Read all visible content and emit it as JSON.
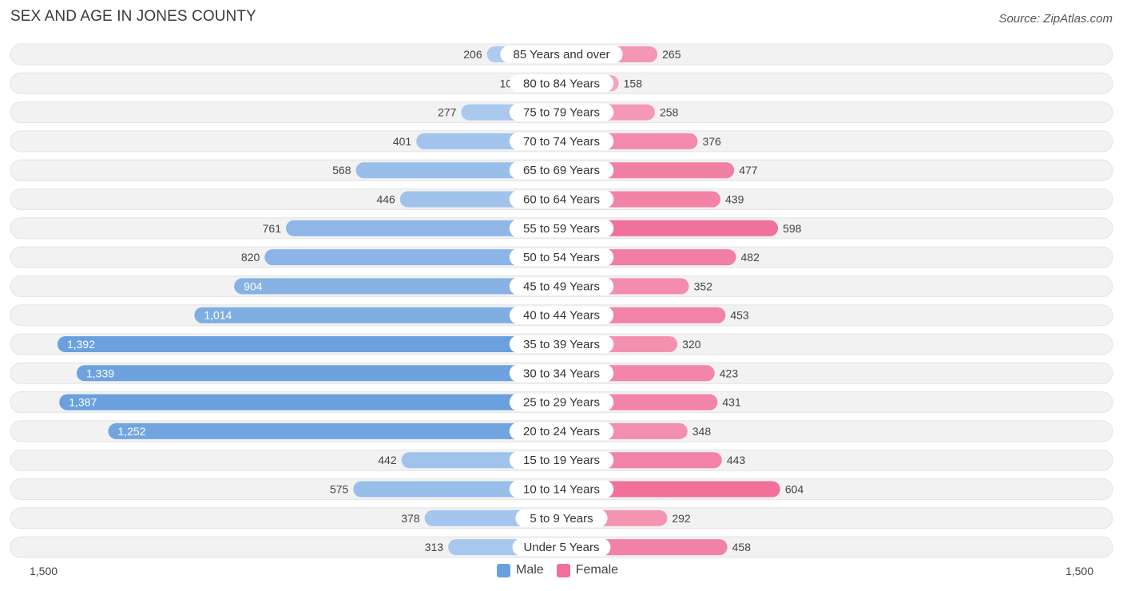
{
  "title": "SEX AND AGE IN JONES COUNTY",
  "source": "Source: ZipAtlas.com",
  "colors": {
    "male": "#6aa0dd",
    "female": "#f07099",
    "row_background": "#f2f2f2"
  },
  "chart_data": {
    "type": "bar",
    "orientation": "horizontal-diverging",
    "categories": [
      "85 Years and over",
      "80 to 84 Years",
      "75 to 79 Years",
      "70 to 74 Years",
      "65 to 69 Years",
      "60 to 64 Years",
      "55 to 59 Years",
      "50 to 54 Years",
      "45 to 49 Years",
      "40 to 44 Years",
      "35 to 39 Years",
      "30 to 34 Years",
      "25 to 29 Years",
      "20 to 24 Years",
      "15 to 19 Years",
      "10 to 14 Years",
      "5 to 9 Years",
      "Under 5 Years"
    ],
    "series": [
      {
        "name": "Male",
        "values": [
          206,
          106,
          277,
          401,
          568,
          446,
          761,
          820,
          904,
          1014,
          1392,
          1339,
          1387,
          1252,
          442,
          575,
          378,
          313
        ],
        "labels": [
          "206",
          "106",
          "277",
          "401",
          "568",
          "446",
          "761",
          "820",
          "904",
          "1,014",
          "1,392",
          "1,339",
          "1,387",
          "1,252",
          "442",
          "575",
          "378",
          "313"
        ]
      },
      {
        "name": "Female",
        "values": [
          265,
          158,
          258,
          376,
          477,
          439,
          598,
          482,
          352,
          453,
          320,
          423,
          431,
          348,
          443,
          604,
          292,
          458
        ],
        "labels": [
          "265",
          "158",
          "258",
          "376",
          "477",
          "439",
          "598",
          "482",
          "352",
          "453",
          "320",
          "423",
          "431",
          "348",
          "443",
          "604",
          "292",
          "458"
        ]
      }
    ],
    "xlim": [
      -1500,
      1500
    ],
    "axis_labels": {
      "left": "1,500",
      "right": "1,500"
    },
    "legend_position": "bottom-center"
  }
}
